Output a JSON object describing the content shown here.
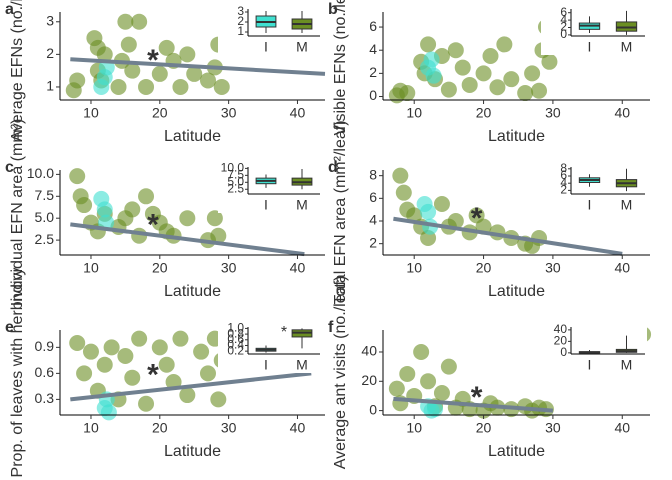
{
  "chart_data": [
    {
      "type": "scatter",
      "panel": "a",
      "ylabel": "Average EFNs (no./leaf)",
      "xlabel": "Latitude",
      "xlim": [
        5.5,
        44
      ],
      "xticks": [
        10,
        20,
        30,
        40
      ],
      "ylim": [
        0.6,
        3.3
      ],
      "yticks": [
        1,
        2,
        3
      ],
      "series": [
        {
          "color": "#6b8e23",
          "x": [
            7.5,
            8,
            10.5,
            11,
            11,
            11.5,
            12,
            14,
            14.5,
            15,
            15.5,
            16,
            17,
            18,
            20,
            21,
            22,
            23,
            24,
            25,
            27,
            28,
            28.5,
            29
          ],
          "values": [
            0.9,
            1.2,
            2.5,
            1.5,
            2.2,
            1.2,
            2.0,
            1.0,
            1.8,
            3.0,
            2.3,
            1.5,
            3.0,
            1.0,
            1.4,
            2.2,
            1.8,
            1.0,
            2.0,
            1.4,
            1.2,
            1.6,
            2.3,
            1.0
          ]
        },
        {
          "color": "#40e0d0",
          "x": [
            11.5,
            12,
            12.3
          ],
          "values": [
            1.0,
            1.3,
            1.6
          ]
        }
      ],
      "trend": {
        "color": "#708090",
        "x": [
          7,
          44
        ],
        "values": [
          1.85,
          1.4
        ]
      },
      "annotation": {
        "text": "*",
        "x": 19,
        "y": 1.95
      },
      "inset": {
        "categories": [
          "I",
          "M"
        ],
        "colors": [
          "#40e0d0",
          "#6b8e23"
        ],
        "ylim": [
          0.6,
          3.3
        ],
        "yticks": [
          1,
          2,
          3
        ],
        "boxes": [
          {
            "low": 0.9,
            "q1": 1.5,
            "median": 2.0,
            "q3": 2.6,
            "high": 3.1
          },
          {
            "low": 0.9,
            "q1": 1.3,
            "median": 1.8,
            "q3": 2.3,
            "high": 3.1
          }
        ]
      }
    },
    {
      "type": "scatter",
      "panel": "b",
      "ylabel": "Visible EFNs (no./leaf)",
      "xlabel": "Latitude",
      "xlim": [
        5.5,
        44
      ],
      "xticks": [
        10,
        20,
        30,
        40
      ],
      "ylim": [
        -0.3,
        7.3
      ],
      "yticks": [
        0,
        2,
        4,
        6
      ],
      "series": [
        {
          "color": "#6b8e23",
          "x": [
            7.5,
            8,
            9,
            11,
            11.5,
            12,
            13,
            14,
            15,
            16,
            17,
            18,
            20,
            21,
            22,
            23,
            24,
            26,
            27,
            28,
            28.5,
            29,
            29.5
          ],
          "values": [
            0.1,
            0.5,
            0.3,
            3.0,
            2.0,
            4.5,
            1.5,
            3.5,
            0.6,
            4.0,
            2.5,
            1.0,
            2.0,
            3.5,
            0.8,
            4.5,
            1.5,
            0.3,
            2.0,
            0.5,
            4.0,
            6.0,
            3.0
          ]
        },
        {
          "color": "#40e0d0",
          "x": [
            12,
            12.5,
            12.8
          ],
          "values": [
            2.5,
            3.2,
            1.8
          ]
        }
      ],
      "inset": {
        "categories": [
          "I",
          "M"
        ],
        "colors": [
          "#40e0d0",
          "#6b8e23"
        ],
        "ylim": [
          -0.3,
          7
        ],
        "yticks": [
          0,
          2,
          4,
          6
        ],
        "boxes": [
          {
            "low": 0.5,
            "q1": 1.5,
            "median": 2.5,
            "q3": 3.2,
            "high": 5
          },
          {
            "low": 0,
            "q1": 1,
            "median": 2,
            "q3": 3.5,
            "high": 6.5
          }
        ]
      }
    },
    {
      "type": "scatter",
      "panel": "c",
      "ylabel": "Individual EFN area (mm²)",
      "xlabel": "Latitude",
      "xlim": [
        5.5,
        44
      ],
      "xticks": [
        10,
        20,
        30,
        40
      ],
      "ylim": [
        0.8,
        10.5
      ],
      "yticks": [
        {
          "value": 2.5,
          "label": "2.5"
        },
        {
          "value": 5,
          "label": "5.0"
        },
        {
          "value": 7.5,
          "label": "7.5"
        },
        {
          "value": 10,
          "label": "10.0"
        }
      ],
      "series": [
        {
          "color": "#6b8e23",
          "x": [
            8,
            8.5,
            9,
            10,
            11,
            12,
            14,
            15,
            16,
            17,
            18,
            19,
            20,
            21,
            22,
            24,
            27,
            28,
            28.5
          ],
          "values": [
            9.8,
            7.5,
            6.5,
            4.5,
            3.5,
            5.5,
            4.0,
            5.0,
            6.0,
            3.0,
            7.5,
            5.5,
            4.5,
            3.5,
            3.0,
            5.0,
            2.5,
            5.0,
            3.0
          ]
        },
        {
          "color": "#40e0d0",
          "x": [
            11.5,
            12,
            12.2
          ],
          "values": [
            7.2,
            6.0,
            4.5
          ]
        }
      ],
      "trend": {
        "color": "#708090",
        "x": [
          7,
          41
        ],
        "values": [
          4.3,
          0.9
        ]
      },
      "annotation": {
        "text": "*",
        "x": 19,
        "y": 4.7
      },
      "inset": {
        "categories": [
          "I",
          "M"
        ],
        "colors": [
          "#40e0d0",
          "#6b8e23"
        ],
        "ylim": [
          0.8,
          10.5
        ],
        "yticks": [
          {
            "value": 2.5,
            "label": "2.5"
          },
          {
            "value": 5,
            "label": "5.0"
          },
          {
            "value": 7.5,
            "label": "7.5"
          },
          {
            "value": 10,
            "label": "10.0"
          }
        ],
        "boxes": [
          {
            "low": 3,
            "q1": 4.5,
            "median": 5.5,
            "q3": 6.5,
            "high": 7.8
          },
          {
            "low": 2.5,
            "q1": 4,
            "median": 5,
            "q3": 6.5,
            "high": 9.8
          }
        ]
      }
    },
    {
      "type": "scatter",
      "panel": "d",
      "ylabel": "Total EFN area (mm²/leaf)",
      "xlabel": "Latitude",
      "xlim": [
        5.5,
        44
      ],
      "xticks": [
        10,
        20,
        30,
        40
      ],
      "ylim": [
        1,
        8.5
      ],
      "yticks": [
        2,
        4,
        6,
        8
      ],
      "series": [
        {
          "color": "#6b8e23",
          "x": [
            8,
            8.5,
            9,
            10,
            11,
            12,
            14,
            15,
            16,
            18,
            19,
            20,
            22,
            24,
            26,
            27,
            28
          ],
          "values": [
            8.0,
            6.5,
            5.0,
            4.5,
            3.5,
            2.5,
            5.5,
            3.5,
            4.0,
            3.0,
            4.5,
            3.5,
            3.0,
            2.5,
            2.0,
            1.8,
            2.5
          ]
        },
        {
          "color": "#40e0d0",
          "x": [
            11.5,
            12,
            12.3
          ],
          "values": [
            5.5,
            4.8,
            3.5
          ]
        }
      ],
      "trend": {
        "color": "#708090",
        "x": [
          7,
          40
        ],
        "values": [
          4.2,
          1.1
        ]
      },
      "annotation": {
        "text": "*",
        "x": 19,
        "y": 4.6
      },
      "inset": {
        "categories": [
          "I",
          "M"
        ],
        "colors": [
          "#40e0d0",
          "#6b8e23"
        ],
        "ylim": [
          1,
          8.5
        ],
        "yticks": [
          2,
          4,
          6,
          8
        ],
        "boxes": [
          {
            "low": 3,
            "q1": 4.2,
            "median": 4.9,
            "q3": 5.5,
            "high": 6.5
          },
          {
            "low": 1.8,
            "q1": 3,
            "median": 4,
            "q3": 5,
            "high": 8
          }
        ]
      }
    },
    {
      "type": "scatter",
      "panel": "e",
      "ylabel": "Prop. of leaves with herbivory",
      "xlabel": "Latitude",
      "xlim": [
        5.5,
        44
      ],
      "xticks": [
        10,
        20,
        30,
        40
      ],
      "ylim": [
        0.12,
        1.1
      ],
      "yticks": [
        0.3,
        0.6,
        0.9
      ],
      "series": [
        {
          "color": "#6b8e23",
          "x": [
            8,
            9,
            10,
            11,
            12,
            13,
            14,
            15,
            16,
            17,
            18,
            20,
            21,
            22,
            23,
            24,
            26,
            27,
            28,
            28.5,
            29,
            30
          ],
          "values": [
            0.95,
            0.6,
            0.85,
            0.4,
            0.7,
            0.9,
            0.3,
            0.8,
            0.55,
            1.0,
            0.25,
            0.9,
            0.7,
            0.5,
            1.0,
            0.35,
            0.85,
            0.6,
            1.0,
            0.3,
            0.75,
            1.0
          ]
        },
        {
          "color": "#40e0d0",
          "x": [
            12,
            12.3,
            12.6
          ],
          "values": [
            0.2,
            0.3,
            0.15
          ]
        }
      ],
      "trend": {
        "color": "#708090",
        "x": [
          7,
          42
        ],
        "values": [
          0.3,
          0.6
        ]
      },
      "annotation": {
        "text": "*",
        "x": 19,
        "y": 0.63
      },
      "inset": {
        "categories": [
          "I",
          "M"
        ],
        "colors": [
          "#40e0d0",
          "#6b8e23"
        ],
        "ylim": [
          0.1,
          1.05
        ],
        "yticks": [
          0.2,
          0.4,
          0.6,
          0.8,
          {
            "value": 1,
            "label": "1.0"
          }
        ],
        "annotation": "*",
        "boxes": [
          {
            "low": 0.15,
            "q1": 0.2,
            "median": 0.25,
            "q3": 0.3,
            "high": 0.4
          },
          {
            "low": 0.3,
            "q1": 0.7,
            "median": 0.85,
            "q3": 0.95,
            "high": 1.0
          }
        ]
      }
    },
    {
      "type": "scatter",
      "panel": "f",
      "ylabel": "Average ant visits (no./leaf)",
      "xlabel": "Latitude",
      "xlim": [
        5.5,
        44
      ],
      "xticks": [
        10,
        20,
        30,
        40
      ],
      "ylim": [
        -3,
        55
      ],
      "yticks": [
        0,
        20,
        40
      ],
      "series": [
        {
          "color": "#6b8e23",
          "x": [
            7.5,
            8,
            9,
            10,
            11,
            12,
            13,
            14,
            15,
            16,
            17,
            18,
            20,
            21,
            22,
            24,
            26,
            27,
            28,
            29,
            43
          ],
          "values": [
            15,
            5,
            25,
            10,
            40,
            20,
            3,
            12,
            30,
            2,
            8,
            1,
            0,
            5,
            2,
            1,
            3,
            0,
            2,
            1,
            52
          ]
        },
        {
          "color": "#40e0d0",
          "x": [
            12,
            12.5,
            13
          ],
          "values": [
            3,
            0,
            1
          ]
        }
      ],
      "trend": {
        "color": "#708090",
        "x": [
          7,
          30
        ],
        "values": [
          8,
          0
        ]
      },
      "annotation": {
        "text": "*",
        "x": 19,
        "y": 12
      },
      "inset": {
        "categories": [
          "I",
          "M"
        ],
        "colors": [
          "#40e0d0",
          "#6b8e23"
        ],
        "ylim": [
          -2,
          45
        ],
        "yticks": [
          0,
          20,
          40
        ],
        "boxes": [
          {
            "low": 0,
            "q1": 0,
            "median": 1,
            "q3": 2,
            "high": 5
          },
          {
            "low": 0,
            "q1": 1,
            "median": 3,
            "q3": 6,
            "high": 30
          }
        ]
      }
    }
  ]
}
